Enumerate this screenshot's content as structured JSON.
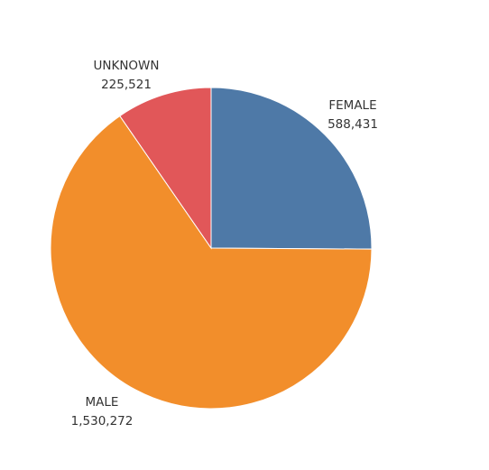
{
  "chart_data": {
    "type": "pie",
    "title": "",
    "start": "12 o'clock, clockwise",
    "slices": [
      {
        "label": "FEMALE",
        "value": 588431,
        "value_text": "588,431",
        "color": "#4e79a7"
      },
      {
        "label": "MALE",
        "value": 1530272,
        "value_text": "1,530,272",
        "color": "#f28e2b"
      },
      {
        "label": "UNKNOWN",
        "value": 225521,
        "value_text": "225,521",
        "color": "#e15759"
      }
    ]
  }
}
